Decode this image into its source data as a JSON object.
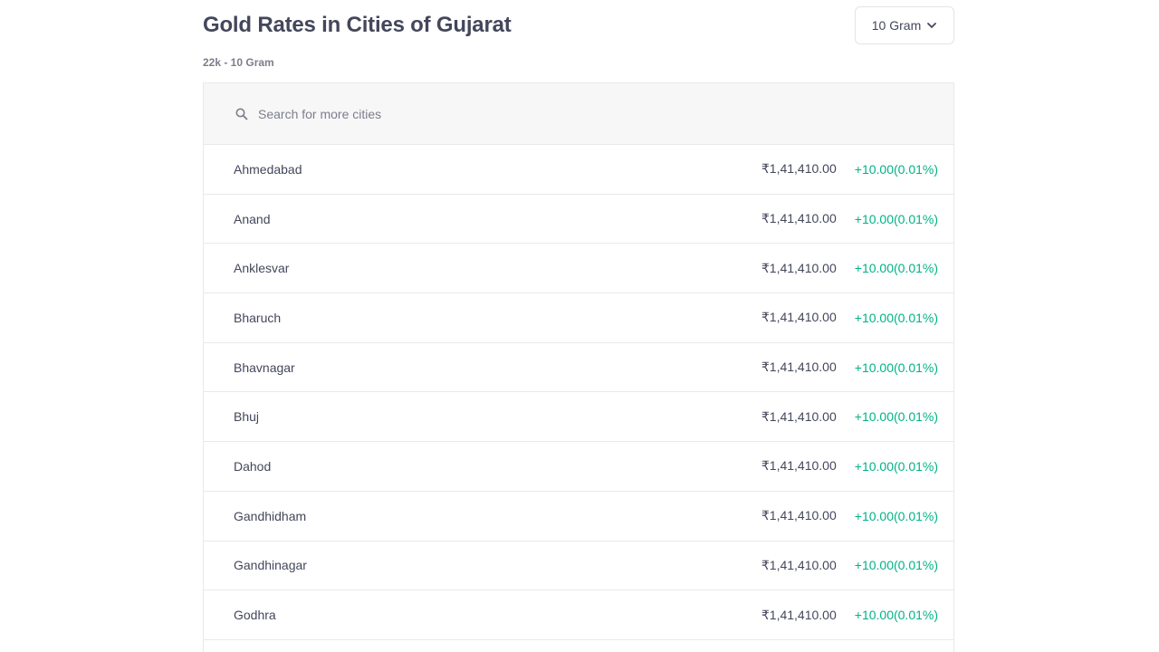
{
  "header": {
    "title": "Gold Rates in Cities of Gujarat",
    "subtitle": "22k - 10 Gram",
    "unit_dropdown": {
      "selected": "10 Gram",
      "icon": "chevron-down-icon"
    }
  },
  "search": {
    "placeholder": "Search for more cities",
    "value": "",
    "icon": "search-icon"
  },
  "colors": {
    "text": "#44475b",
    "muted": "#7c7e8c",
    "positive": "#00b386",
    "border": "#e9e9eb",
    "search_bg": "#f7f7f8"
  },
  "rows": [
    {
      "city": "Ahmedabad",
      "price": "₹1,41,410.00",
      "change": "+10.00(0.01%)"
    },
    {
      "city": "Anand",
      "price": "₹1,41,410.00",
      "change": "+10.00(0.01%)"
    },
    {
      "city": "Anklesvar",
      "price": "₹1,41,410.00",
      "change": "+10.00(0.01%)"
    },
    {
      "city": "Bharuch",
      "price": "₹1,41,410.00",
      "change": "+10.00(0.01%)"
    },
    {
      "city": "Bhavnagar",
      "price": "₹1,41,410.00",
      "change": "+10.00(0.01%)"
    },
    {
      "city": "Bhuj",
      "price": "₹1,41,410.00",
      "change": "+10.00(0.01%)"
    },
    {
      "city": "Dahod",
      "price": "₹1,41,410.00",
      "change": "+10.00(0.01%)"
    },
    {
      "city": "Gandhidham",
      "price": "₹1,41,410.00",
      "change": "+10.00(0.01%)"
    },
    {
      "city": "Gandhinagar",
      "price": "₹1,41,410.00",
      "change": "+10.00(0.01%)"
    },
    {
      "city": "Godhra",
      "price": "₹1,41,410.00",
      "change": "+10.00(0.01%)"
    }
  ]
}
